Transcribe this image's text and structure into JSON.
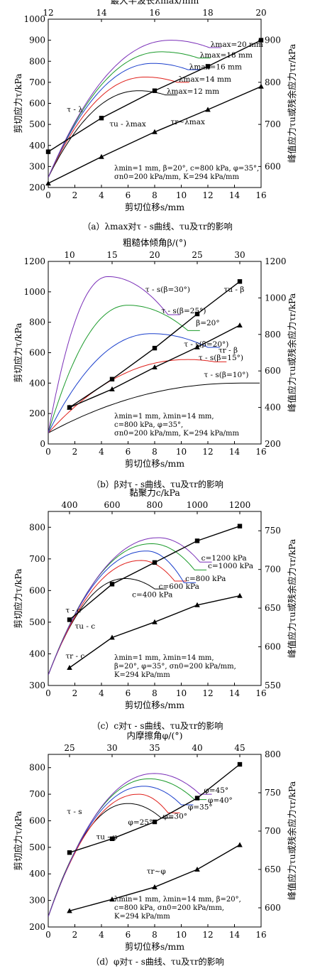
{
  "chart_data": [
    {
      "type": "line",
      "caption": "（a）λmax对τ - s曲线、τu及τr的影响",
      "xlabel": "剪切位移s/mm",
      "ylabel_left": "剪切应力τ/kPa",
      "ylabel_right": "峰值应力τu或残余应力τr/kPa",
      "xlabel_top": "最大半波长λmax/mm",
      "xlim": [
        0,
        16
      ],
      "xticks": [
        0,
        2,
        4,
        6,
        8,
        10,
        12,
        14,
        16
      ],
      "ylim": [
        200,
        1000
      ],
      "yticks": [
        200,
        300,
        400,
        500,
        600,
        700,
        800,
        900,
        1000
      ],
      "ylim_right": [
        550,
        950
      ],
      "yticks_right": [
        600,
        700,
        800,
        900
      ],
      "xlim_top": [
        12,
        20
      ],
      "xticks_top": [
        12,
        14,
        16,
        18,
        20
      ],
      "curves": [
        {
          "name": "λmax=12 mm",
          "color": "#000000",
          "peak_s": 6.8,
          "peak_tau": 660,
          "end_s": 8.8,
          "end_tau": 640
        },
        {
          "name": "λmax=14 mm",
          "color": "#e0201b",
          "peak_s": 7.3,
          "peak_tau": 725,
          "end_s": 9.7,
          "end_tau": 700
        },
        {
          "name": "λmax=16 mm",
          "color": "#1a3fcc",
          "peak_s": 7.9,
          "peak_tau": 790,
          "end_s": 10.5,
          "end_tau": 760
        },
        {
          "name": "λmax=18 mm",
          "color": "#1a9a2a",
          "peak_s": 8.5,
          "peak_tau": 845,
          "end_s": 11.3,
          "end_tau": 815
        },
        {
          "name": "λmax=20 mm",
          "color": "#7a2fb8",
          "peak_s": 9.2,
          "peak_tau": 900,
          "end_s": 12.1,
          "end_tau": 865
        }
      ],
      "peak_series": {
        "name": "τu-λmax",
        "marker": "square",
        "x": [
          12,
          14,
          16,
          18,
          20
        ],
        "y": [
          635,
          715,
          780,
          838,
          900
        ]
      },
      "residual_series": {
        "name": "τr~λmax",
        "marker": "triangle",
        "x": [
          12,
          14,
          16,
          18,
          20
        ],
        "y": [
          560,
          623,
          682,
          735,
          790
        ]
      },
      "labels": [
        {
          "text": "λmax=20 mm",
          "x": 12.2,
          "y": 868
        },
        {
          "text": "λmax=18 mm",
          "x": 11.4,
          "y": 818
        },
        {
          "text": "λmax=16 mm",
          "x": 10.6,
          "y": 762
        },
        {
          "text": "λmax=14 mm",
          "x": 9.8,
          "y": 703
        },
        {
          "text": "λmax=12 mm",
          "x": 8.9,
          "y": 646
        },
        {
          "text": "τ - λ",
          "x": 1.4,
          "y": 560
        },
        {
          "text": "τu - λmax",
          "x": 4.6,
          "y": 490
        },
        {
          "text": "τr~λmax",
          "x": 9.2,
          "y": 500
        }
      ],
      "params": [
        "λmin=1 mm, β=20°, c=800 kPa, φ=35°,",
        "σn0=200 kPa/mm, K=294 kPa/mm"
      ]
    },
    {
      "type": "line",
      "caption": "（b）β对τ - s曲线、τu及τr的影响",
      "xlabel": "剪切位移s/mm",
      "ylabel_left": "剪切应力τ/kPa",
      "ylabel_right": "峰值应力τu或残余应力τr/kPa",
      "xlabel_top": "粗糙体倾角β/(°)",
      "xlim": [
        0,
        16
      ],
      "xticks": [
        0,
        2,
        4,
        6,
        8,
        10,
        12,
        14,
        16
      ],
      "ylim": [
        0,
        1200
      ],
      "yticks": [
        0,
        200,
        400,
        600,
        800,
        1000,
        1200
      ],
      "ylim_right": [
        200,
        1200
      ],
      "yticks_right": [
        200,
        400,
        600,
        800,
        1000,
        1200
      ],
      "xlim_top": [
        7.5,
        32.5
      ],
      "xticks_top": [
        10,
        15,
        20,
        25,
        30
      ],
      "curves": [
        {
          "name": "τ - s(β=10°)",
          "color": "#000000",
          "peak_s": 14.5,
          "peak_tau": 400,
          "end_s": 15,
          "end_tau": 400
        },
        {
          "name": "τ - s(β=15°)",
          "color": "#e0201b",
          "peak_s": 10.5,
          "peak_tau": 555,
          "end_s": 12.5,
          "end_tau": 540
        },
        {
          "name": "τ - s(β=20°)",
          "color": "#1a3fcc",
          "peak_s": 7.8,
          "peak_tau": 725,
          "end_s": 12.0,
          "end_tau": 635
        },
        {
          "name": "τ - s(β=25°)",
          "color": "#1a9a2a",
          "peak_s": 6.0,
          "peak_tau": 912,
          "end_s": 10.5,
          "end_tau": 745
        },
        {
          "name": "τ - s(β=30°)",
          "color": "#7a2fb8",
          "peak_s": 4.5,
          "peak_tau": 1100,
          "end_s": 9.0,
          "end_tau": 850
        }
      ],
      "peak_series": {
        "name": "τu - β",
        "marker": "square",
        "x": [
          10,
          15,
          20,
          25,
          30
        ],
        "y": [
          400,
          555,
          725,
          912,
          1090
        ]
      },
      "residual_series": {
        "name": "τr - β",
        "marker": "triangle",
        "x": [
          10,
          15,
          20,
          25,
          30
        ],
        "y": [
          400,
          500,
          620,
          730,
          850
        ]
      },
      "labels": [
        {
          "text": "τ - s(β=30°)",
          "x": 7.3,
          "y": 1000
        },
        {
          "text": "τ - s(β=25°)",
          "x": 8.5,
          "y": 860
        },
        {
          "text": "β=20°",
          "x": 11.1,
          "y": 780
        },
        {
          "text": "τu - β",
          "x": 13.2,
          "y": 1000
        },
        {
          "text": "τ - s(β=20°)",
          "x": 10.2,
          "y": 640
        },
        {
          "text": "τr - β",
          "x": 12.8,
          "y": 600
        },
        {
          "text": "τ - s(β=15°)",
          "x": 11.3,
          "y": 550
        },
        {
          "text": "τ - s(β=10°)",
          "x": 11.7,
          "y": 440
        }
      ],
      "params": [
        "λmin=1 mm, λmin=14 mm,",
        "c=800 kPa, φ=35°,",
        "σn0=200 kPa/mm, K=294 kPa/mm"
      ]
    },
    {
      "type": "line",
      "caption": "（c）c对τ - s曲线、τu及τr的影响",
      "xlabel": "剪切位移s/mm",
      "ylabel_left": "剪切应力τ/kPa",
      "ylabel_right": "峰值应力τu或残余应力τr/kPa",
      "xlabel_top": "黏聚力c/kPa",
      "xlim": [
        0,
        16
      ],
      "xticks": [
        0,
        2,
        4,
        6,
        8,
        10,
        12,
        14,
        16
      ],
      "ylim": [
        300,
        850
      ],
      "yticks": [
        300,
        400,
        500,
        600,
        700,
        800
      ],
      "ylim_right": [
        550,
        775
      ],
      "yticks_right": [
        550,
        600,
        650,
        700,
        750
      ],
      "xlim_top": [
        300,
        1300
      ],
      "xticks_top": [
        400,
        600,
        800,
        1000,
        1200
      ],
      "curves": [
        {
          "name": "c=400 kPa",
          "color": "#000000",
          "peak_s": 5.8,
          "peak_tau": 638,
          "end_s": 8.0,
          "end_tau": 605
        },
        {
          "name": "c=600 kPa",
          "color": "#e0201b",
          "peak_s": 7.0,
          "peak_tau": 695,
          "end_s": 9.5,
          "end_tau": 630
        },
        {
          "name": "c=800 kPa",
          "color": "#1a3fcc",
          "peak_s": 7.4,
          "peak_tau": 725,
          "end_s": 10.2,
          "end_tau": 625
        },
        {
          "name": "c=1000 kPa",
          "color": "#1a9a2a",
          "peak_s": 7.8,
          "peak_tau": 748,
          "end_s": 11.0,
          "end_tau": 665
        },
        {
          "name": "c=1200 kPa",
          "color": "#7a2fb8",
          "peak_s": 8.3,
          "peak_tau": 767,
          "end_s": 11.4,
          "end_tau": 690
        }
      ],
      "peak_series": {
        "name": "τu - c",
        "marker": "square",
        "x": [
          400,
          600,
          800,
          1000,
          1200
        ],
        "y": [
          635,
          681,
          709,
          737,
          756
        ]
      },
      "residual_series": {
        "name": "τr - c",
        "marker": "triangle",
        "x": [
          400,
          600,
          800,
          1000,
          1200
        ],
        "y": [
          573,
          612,
          632,
          654,
          666
        ]
      },
      "labels": [
        {
          "text": "c=1200 kPa",
          "x": 11.5,
          "y": 695
        },
        {
          "text": "c=1000 kPa",
          "x": 12.0,
          "y": 670
        },
        {
          "text": "c=800 kPa",
          "x": 10.3,
          "y": 630
        },
        {
          "text": "c=600 kPa",
          "x": 8.3,
          "y": 605
        },
        {
          "text": "c=400 kPa",
          "x": 6.3,
          "y": 580
        },
        {
          "text": "τ - c",
          "x": 1.3,
          "y": 530
        },
        {
          "text": "τu - c",
          "x": 2.0,
          "y": 480
        },
        {
          "text": "τr - c",
          "x": 1.3,
          "y": 385
        }
      ],
      "params": [
        "λmin=1 mm, λmin=14 mm,",
        "β=20°, φ=35°, σn0=200 kPa/mm,",
        "K=294 kPa/mm"
      ]
    },
    {
      "type": "line",
      "caption": "（d）φ对τ - s曲线、τu及τr的影响",
      "xlabel": "剪切位移s/mm",
      "ylabel_left": "剪切应力τ/kPa",
      "ylabel_right": "峰值应力τu或残余应力τr/kPa",
      "xlabel_top": "内摩擦角φ/(°)",
      "xlim": [
        0,
        16
      ],
      "xticks": [
        0,
        2,
        4,
        6,
        8,
        10,
        12,
        14,
        16
      ],
      "ylim": [
        200,
        850
      ],
      "yticks": [
        200,
        300,
        400,
        500,
        600,
        700,
        800
      ],
      "ylim_right": [
        575,
        800
      ],
      "yticks_right": [
        600,
        650,
        700,
        750,
        800
      ],
      "xlim_top": [
        22.5,
        47.5
      ],
      "xticks_top": [
        25,
        30,
        35,
        40,
        45
      ],
      "curves": [
        {
          "name": "φ=25°",
          "color": "#000000",
          "peak_s": 6.0,
          "peak_tau": 665,
          "end_s": 8.5,
          "end_tau": 610
        },
        {
          "name": "φ=30°",
          "color": "#e0201b",
          "peak_s": 6.8,
          "peak_tau": 700,
          "end_s": 9.0,
          "end_tau": 630
        },
        {
          "name": "φ=35°",
          "color": "#1a3fcc",
          "peak_s": 7.2,
          "peak_tau": 730,
          "end_s": 10.0,
          "end_tau": 660
        },
        {
          "name": "φ=40°",
          "color": "#1a9a2a",
          "peak_s": 7.6,
          "peak_tau": 758,
          "end_s": 11.0,
          "end_tau": 680
        },
        {
          "name": "φ=45°",
          "color": "#7a2fb8",
          "peak_s": 8.0,
          "peak_tau": 778,
          "end_s": 11.4,
          "end_tau": 700
        }
      ],
      "peak_series": {
        "name": "τu - φ",
        "marker": "square",
        "x": [
          25,
          30,
          35,
          40,
          45
        ],
        "y": [
          672,
          690,
          712,
          743,
          787
        ]
      },
      "residual_series": {
        "name": "τr~φ",
        "marker": "triangle",
        "x": [
          25,
          30,
          35,
          40,
          45
        ],
        "y": [
          596,
          611,
          627,
          650,
          682
        ]
      },
      "labels": [
        {
          "text": "φ=45°",
          "x": 11.7,
          "y": 705
        },
        {
          "text": "φ=40°",
          "x": 12.0,
          "y": 668
        },
        {
          "text": "φ=35°",
          "x": 10.5,
          "y": 643
        },
        {
          "text": "φ=30°",
          "x": 8.6,
          "y": 608
        },
        {
          "text": "φ=25°",
          "x": 6.0,
          "y": 585
        },
        {
          "text": "τ - s",
          "x": 1.4,
          "y": 625
        },
        {
          "text": "τu - φ",
          "x": 3.6,
          "y": 530
        },
        {
          "text": "τr~φ",
          "x": 7.4,
          "y": 400
        }
      ],
      "params": [
        "λmin=1 mm, λmin=14 mm, β=20°,",
        "c=800 kPa, σn0=200 kPa/mm,",
        "K=294 kPa/mm"
      ]
    }
  ]
}
